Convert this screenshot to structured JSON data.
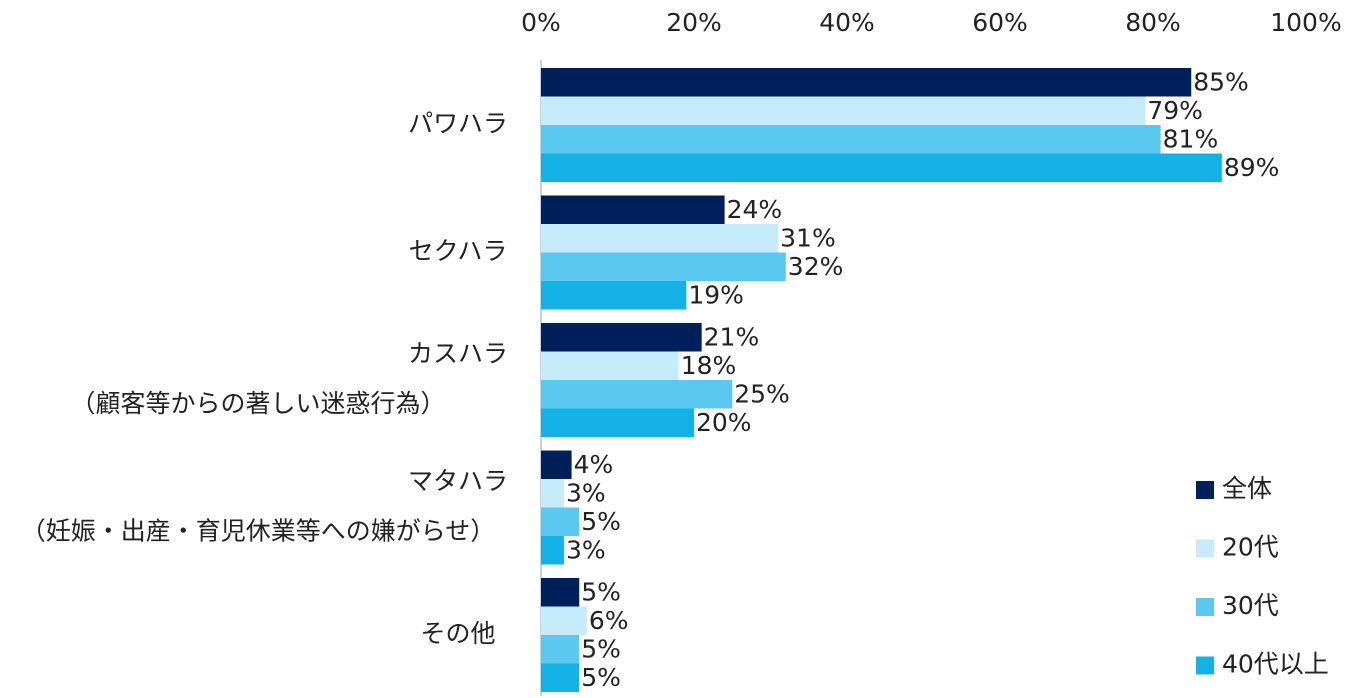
{
  "chart_data": {
    "type": "bar",
    "orientation": "horizontal",
    "categories": [
      [
        "パワハラ"
      ],
      [
        "セクハラ"
      ],
      [
        "カスハラ",
        "（顧客等からの著しい迷惑行為）"
      ],
      [
        "マタハラ",
        "（妊娠・出産・育児休業等への嫌がらせ）"
      ],
      [
        "その他"
      ]
    ],
    "series": [
      {
        "name": "全体",
        "color": "#00205b",
        "values": [
          85,
          24,
          21,
          4,
          5
        ]
      },
      {
        "name": "20代",
        "color": "#c6ebfa",
        "values": [
          79,
          31,
          18,
          3,
          6
        ]
      },
      {
        "name": "30代",
        "color": "#5bc8f0",
        "values": [
          81,
          32,
          25,
          5,
          5
        ]
      },
      {
        "name": "40代以上",
        "color": "#14b1e7",
        "values": [
          89,
          19,
          20,
          3,
          5
        ]
      }
    ],
    "xticks": [
      "0%",
      "20%",
      "40%",
      "60%",
      "80%",
      "100%"
    ],
    "xlim": [
      0,
      100
    ],
    "value_suffix": "%",
    "axis_position": "top",
    "legend_position": "bottom-right",
    "grid": false
  }
}
